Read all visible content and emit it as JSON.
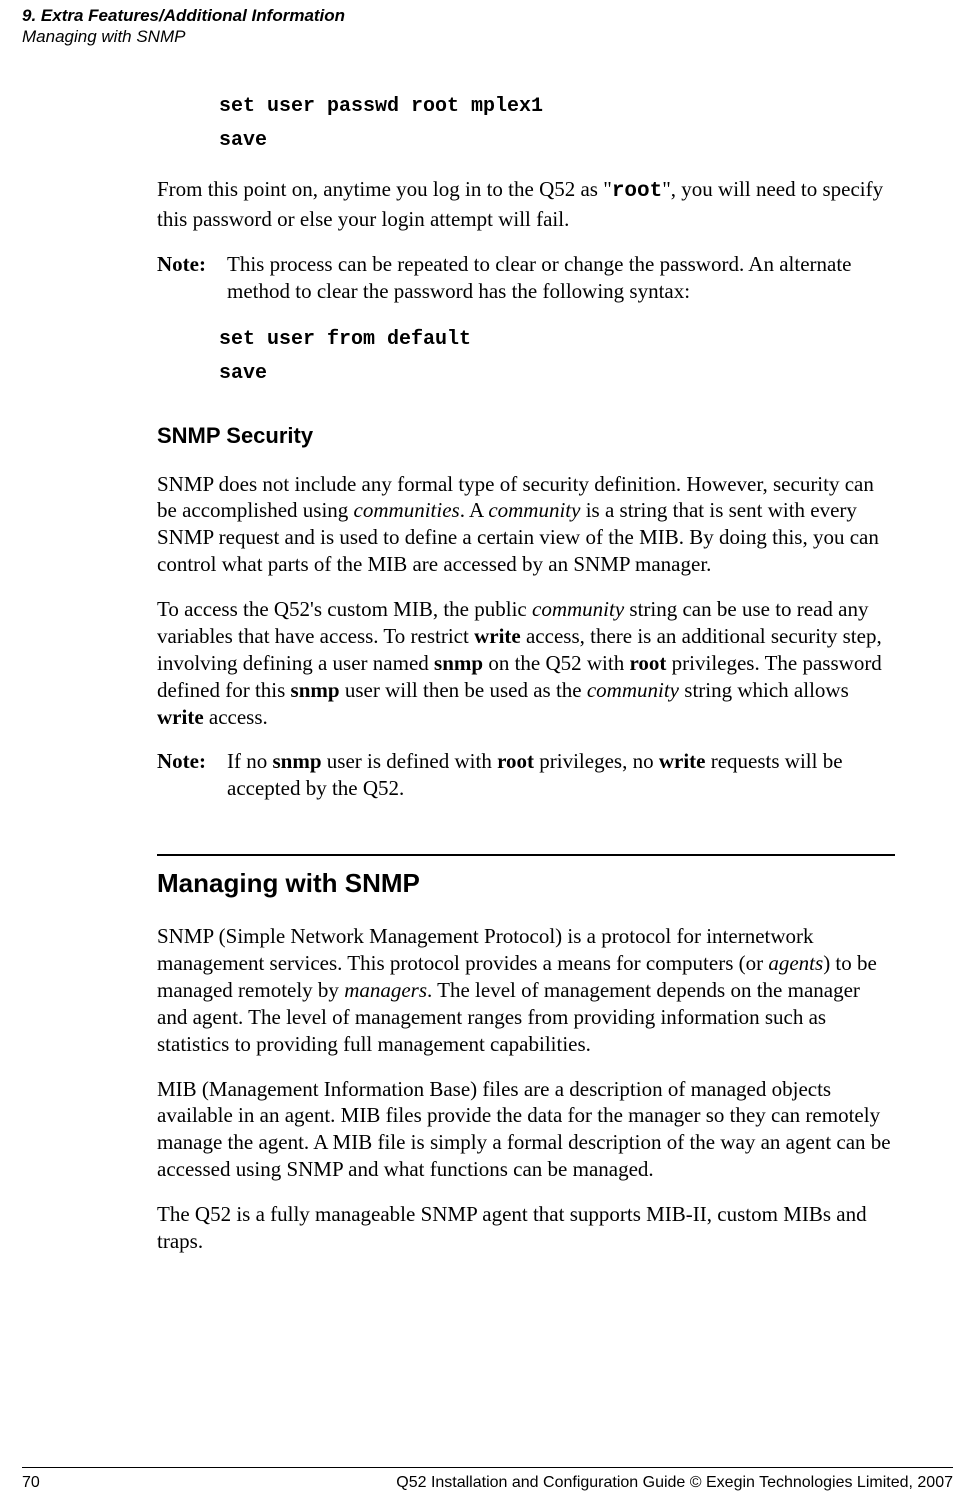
{
  "header": {
    "title": "9. Extra Features/Additional Information",
    "sub": "Managing with SNMP"
  },
  "codeblock1": {
    "line1": "set user passwd root mplex1",
    "line2": "save"
  },
  "para1_a": "From this point on, anytime you log in to the Q52 as \"",
  "para1_root": "root",
  "para1_b": "\", you will need to specify this password or else your login attempt will fail.",
  "note1": {
    "label": "Note:",
    "body": "This process can be repeated to clear or change the password. An alternate method to clear the password has the following syntax:"
  },
  "codeblock2": {
    "line1": "set user from default",
    "line2": "save"
  },
  "h2_snmp_security": "SNMP Security",
  "para2_a": "SNMP does not include any formal type of security definition. However, security can be accomplished using ",
  "para2_i1": "communities",
  "para2_b": ". A ",
  "para2_i2": "community",
  "para2_c": " is a string that is sent with every SNMP request and is used to define a certain view of the MIB. By doing this, you can control what parts of the MIB are accessed by an SNMP manager.",
  "para3_a": "To access the Q52's custom MIB, the public ",
  "para3_i1": "community",
  "para3_b": " string can be use to read any variables that have access. To restrict ",
  "para3_bold1": "write",
  "para3_c": " access, there is an additional security step, involving defining a user named ",
  "para3_bold2": "snmp",
  "para3_d": " on the Q52 with ",
  "para3_bold3": "root",
  "para3_e": " privileges. The password defined for this ",
  "para3_bold4": "snmp",
  "para3_f": " user will then be used as the ",
  "para3_i2": "community",
  "para3_g": " string which allows ",
  "para3_bold5": "write",
  "para3_h": " access.",
  "note2": {
    "label": "Note:",
    "a": "If no ",
    "b1": "snmp",
    "b": " user is defined with ",
    "b2": "root",
    "c": " privileges, no ",
    "b3": "write",
    "d": " requests will be accepted by the Q52."
  },
  "h1_managing": "Managing with SNMP",
  "para4_a": "SNMP (Simple Network Management Protocol) is a protocol for internetwork management services. This protocol provides a means for computers (or ",
  "para4_i1": "agents",
  "para4_b": ") to be managed remotely by ",
  "para4_i2": "managers",
  "para4_c": ". The level of management depends on the manager and agent. The level of management ranges from providing information such as statistics to providing full management capabilities.",
  "para5": "MIB (Management Information Base) files are a description of managed objects available in an agent. MIB files provide the data for the manager so they can remotely manage the agent. A MIB file is simply a formal description of the way an agent can be accessed using SNMP and what functions can be managed.",
  "para6": "The Q52 is a fully manageable SNMP agent that supports MIB-II, custom MIBs and traps.",
  "footer": {
    "page": "70",
    "right": "Q52 Installation and Configuration Guide  © Exegin Technologies Limited, 2007"
  }
}
